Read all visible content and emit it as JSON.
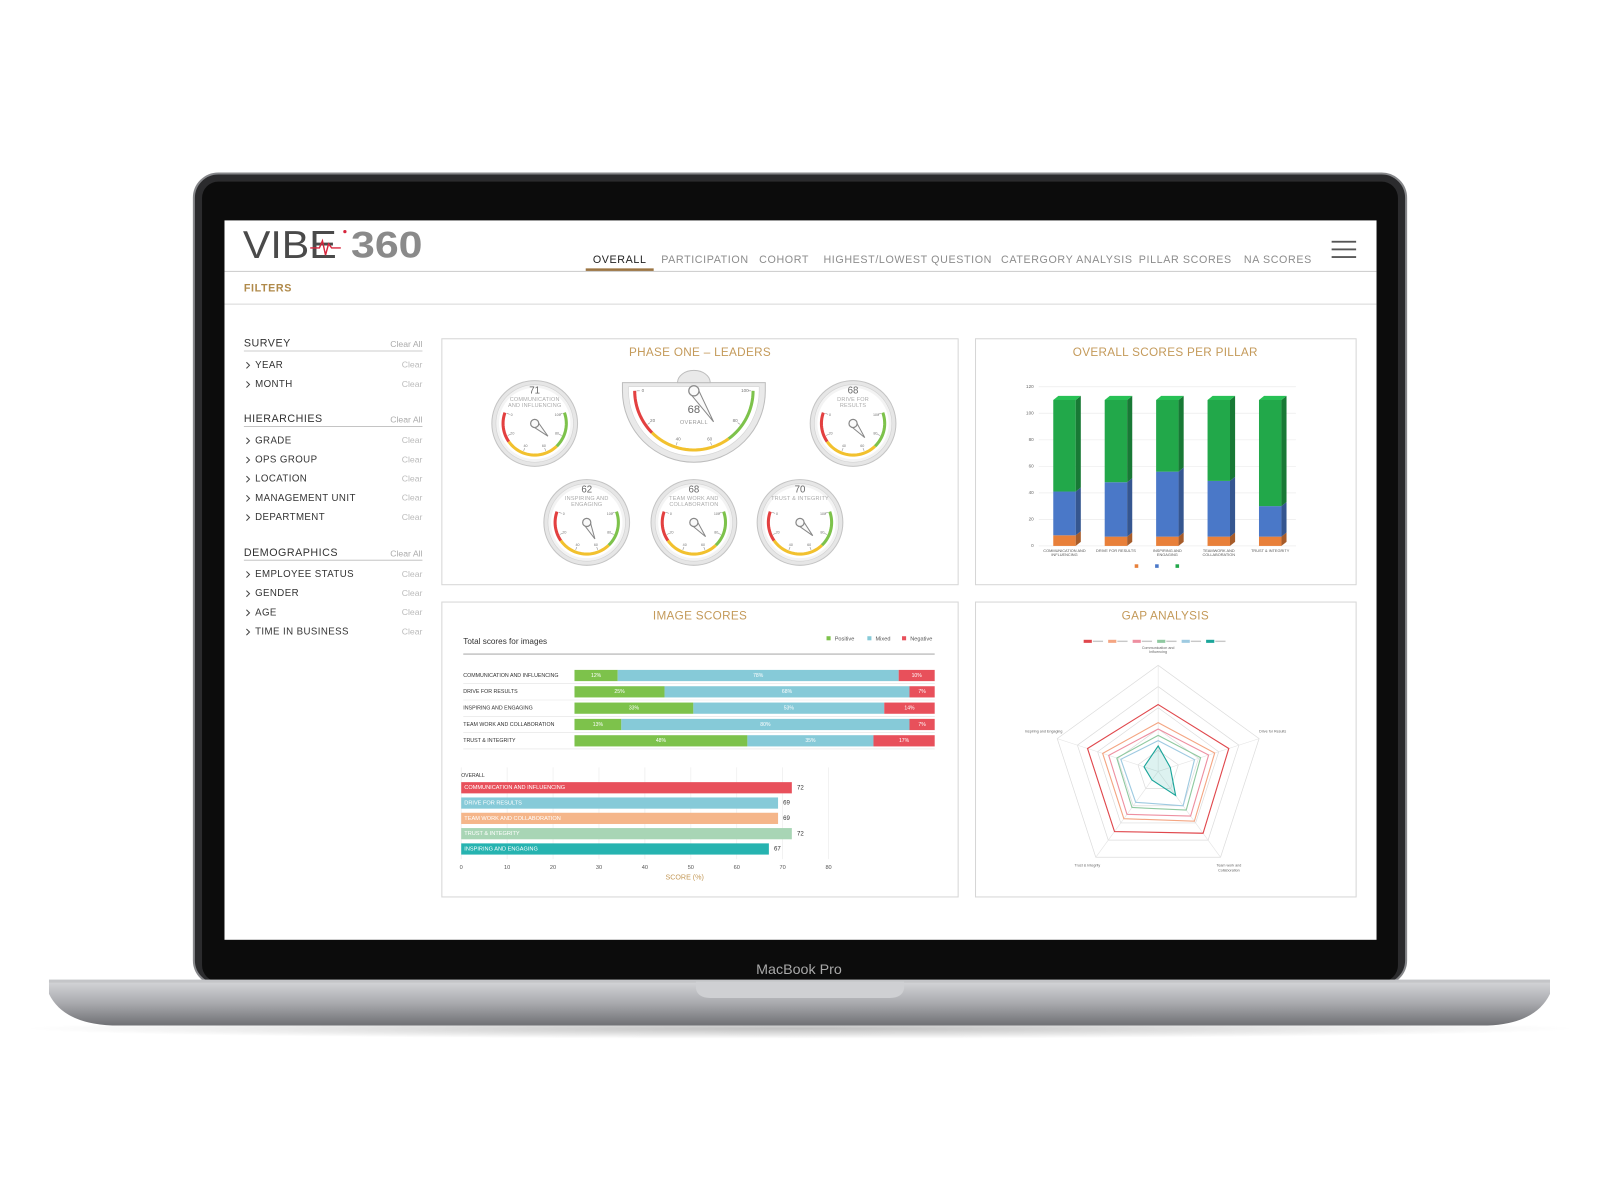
{
  "device_label": "MacBook Pro",
  "header": {
    "logo_word": "VIBE",
    "logo_number": "360",
    "tabs": [
      "OVERALL",
      "PARTICIPATION",
      "COHORT",
      "HIGHEST/LOWEST QUESTION",
      "CATERGORY ANALYSIS",
      "PILLAR SCORES",
      "NA SCORES"
    ],
    "active_tab": 0
  },
  "filters": {
    "title": "FILTERS",
    "clear_all": "Clear All",
    "clear": "Clear",
    "groups": [
      {
        "title": "SURVEY",
        "items": [
          "YEAR",
          "MONTH"
        ]
      },
      {
        "title": "HIERARCHIES",
        "items": [
          "GRADE",
          "OPS GROUP",
          "LOCATION",
          "MANAGEMENT UNIT",
          "DEPARTMENT"
        ]
      },
      {
        "title": "DEMOGRAPHICS",
        "items": [
          "EMPLOYEE STATUS",
          "GENDER",
          "AGE",
          "TIME IN BUSINESS"
        ]
      }
    ]
  },
  "chart_data": [
    {
      "type": "gauge",
      "title": "PHASE ONE – LEADERS",
      "lim": [
        0,
        100
      ],
      "ticks": [
        0,
        20,
        40,
        60,
        80,
        100
      ],
      "gauges": [
        {
          "label": "COMMUNICATION AND INFLUENCING",
          "value": 71
        },
        {
          "label": "OVERALL",
          "value": 68,
          "main": true
        },
        {
          "label": "DRIVE FOR RESULTS",
          "value": 68
        },
        {
          "label": "INSPIRING AND ENGAGING",
          "value": 62
        },
        {
          "label": "TEAM WORK AND COLLABORATION",
          "value": 68
        },
        {
          "label": "TRUST & INTEGRITY",
          "value": 70
        }
      ]
    },
    {
      "type": "stacked_bar",
      "title": "OVERALL SCORES PER PILLAR",
      "categories": [
        "COMMUNICATION AND INFLUENCING",
        "DRIVE FOR RESULTS",
        "INSPIRING AND ENGAGING",
        "TEAMWORK AND COLLABORATION",
        "TRUST & INTEGRITY"
      ],
      "series": [
        {
          "color": "#e8803a",
          "values": [
            8,
            7,
            7,
            7,
            7
          ]
        },
        {
          "color": "#4a78c8",
          "values": [
            33,
            41,
            49,
            42,
            23
          ]
        },
        {
          "color": "#22a84a",
          "values": [
            69,
            62,
            54,
            61,
            80
          ]
        }
      ],
      "ylim": [
        0,
        120
      ],
      "yticks": [
        0,
        20,
        40,
        60,
        80,
        100,
        120
      ],
      "grid": true
    },
    {
      "type": "stacked_hbar",
      "title": "IMAGE SCORES",
      "subtitle": "Total scores for images",
      "categories": [
        "COMMUNICATION AND INFLUENCING",
        "DRIVE FOR RESULTS",
        "INSPIRING AND ENGAGING",
        "TEAM WORK AND COLLABORATION",
        "TRUST & INTEGRITY"
      ],
      "series": [
        {
          "name": "Positive",
          "color": "#7dc24b",
          "values": [
            12,
            25,
            33,
            13,
            48
          ],
          "value_labels": [
            "12%",
            "25%",
            "33%",
            "13%",
            "48%"
          ]
        },
        {
          "name": "Mixed",
          "color": "#86cad8",
          "values": [
            78,
            68,
            53,
            80,
            35
          ],
          "value_labels": [
            "78%",
            "68%",
            "53%",
            "80%",
            "35%"
          ]
        },
        {
          "name": "Negative",
          "color": "#e8505b",
          "values": [
            10,
            7,
            14,
            7,
            17
          ],
          "value_labels": [
            "10%",
            "7%",
            "14%",
            "7%",
            "17%"
          ]
        }
      ],
      "xlim": [
        0,
        100
      ]
    },
    {
      "type": "hbar",
      "title": "OVERALL",
      "xlabel": "SCORE (%)",
      "categories": [
        "COMMUNICATION AND INFLUENCING",
        "DRIVE FOR RESULTS",
        "TEAM WORK AND COLLABORATION",
        "TRUST & INTEGRITY",
        "INSPIRING AND ENGAGING"
      ],
      "values": [
        72,
        69,
        69,
        72,
        67
      ],
      "colors": [
        "#e8505b",
        "#86cad8",
        "#f5b68a",
        "#a8d5b5",
        "#26b3b0"
      ],
      "xlim": [
        0,
        80
      ],
      "xticks": [
        0,
        10,
        20,
        30,
        40,
        50,
        60,
        70,
        80
      ],
      "grid": true
    },
    {
      "type": "radar",
      "title": "GAP ANALYSIS",
      "axes": [
        "Communication and Influencing",
        "Drive for Results",
        "Team work and Collaboration",
        "Trust & Integrity",
        "Inspiring and Engaging"
      ],
      "rlim": [
        0,
        100
      ],
      "rticks": [
        20,
        40,
        60,
        80,
        100
      ],
      "series": [
        {
          "color": "#e0474c",
          "values": [
            63,
            70,
            72,
            70,
            70
          ]
        },
        {
          "color": "#f4a582",
          "values": [
            46,
            56,
            58,
            55,
            55
          ]
        },
        {
          "color": "#ee8fa0",
          "values": [
            40,
            50,
            52,
            50,
            49
          ]
        },
        {
          "color": "#8fc9a0",
          "values": [
            34,
            42,
            45,
            42,
            41
          ]
        },
        {
          "color": "#9ecae1",
          "values": [
            29,
            36,
            40,
            36,
            37
          ]
        },
        {
          "color": "#1aa59a",
          "values": [
            24,
            12,
            28,
            10,
            14
          ]
        }
      ]
    }
  ]
}
